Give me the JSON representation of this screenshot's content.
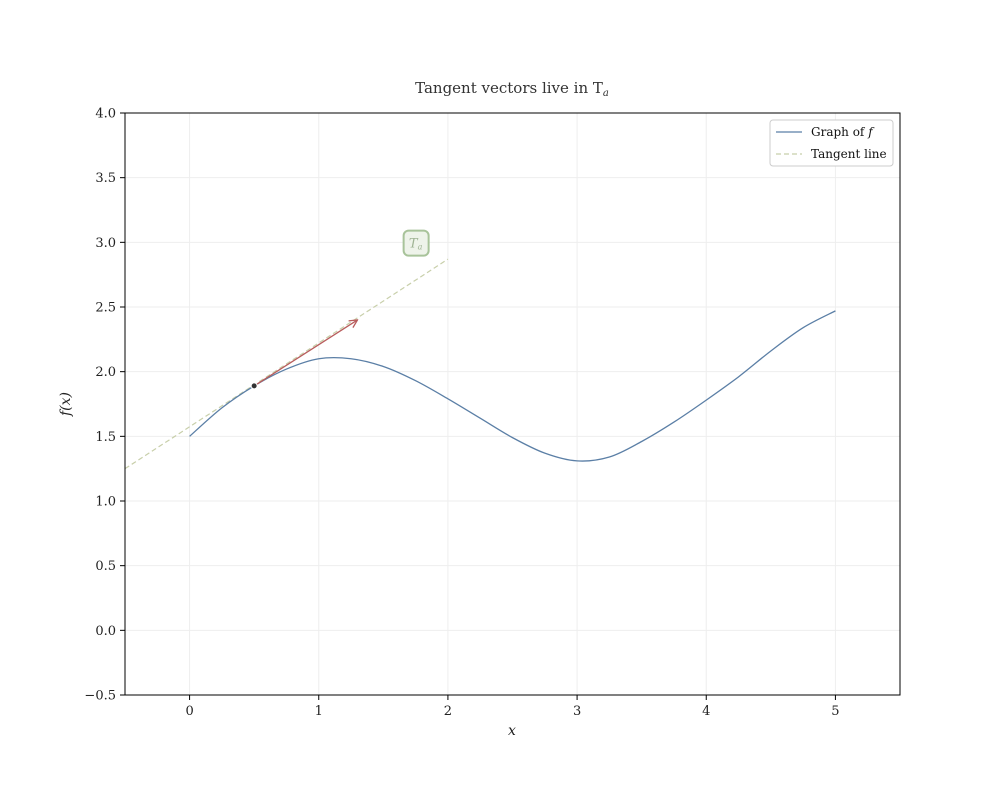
{
  "chart_data": {
    "type": "line",
    "title": "Tangent vectors live in T",
    "title_subscript": "a",
    "xlabel": "x",
    "ylabel": "f(x)",
    "xlim": [
      -0.5,
      5.5
    ],
    "ylim": [
      -0.5,
      4.0
    ],
    "xticks": [
      0,
      1,
      2,
      3,
      4,
      5
    ],
    "xtick_labels": [
      "0",
      "1",
      "2",
      "3",
      "4",
      "5"
    ],
    "yticks": [
      -0.5,
      0.0,
      0.5,
      1.0,
      1.5,
      2.0,
      2.5,
      3.0,
      3.5,
      4.0
    ],
    "ytick_labels": [
      "−0.5",
      "0.0",
      "0.5",
      "1.0",
      "1.5",
      "2.0",
      "2.5",
      "3.0",
      "3.5",
      "4.0"
    ],
    "grid": true,
    "legend_position": "top-right",
    "series": [
      {
        "name": "Graph of f",
        "style": "solid",
        "color": "#5b7fa6",
        "x": [
          0.0,
          0.25,
          0.5,
          0.75,
          1.0,
          1.25,
          1.5,
          1.75,
          2.0,
          2.25,
          2.5,
          2.75,
          3.0,
          3.25,
          3.5,
          3.75,
          4.0,
          4.25,
          4.5,
          4.75,
          5.0
        ],
        "y": [
          1.5,
          1.72,
          1.89,
          2.02,
          2.1,
          2.1,
          2.04,
          1.93,
          1.79,
          1.64,
          1.49,
          1.37,
          1.31,
          1.34,
          1.46,
          1.61,
          1.78,
          1.96,
          2.16,
          2.34,
          2.47
        ]
      },
      {
        "name": "Tangent line",
        "style": "dashed",
        "color": "#c8cfaa",
        "x": [
          -0.5,
          2.0
        ],
        "y": [
          1.25,
          2.87
        ]
      }
    ],
    "legend": {
      "entries": [
        {
          "label": "Graph of ",
          "symbol": "f",
          "style": "solid",
          "color": "#5b7fa6"
        },
        {
          "label": "Tangent line",
          "symbol": "",
          "style": "dashed",
          "color": "#c8cfaa"
        }
      ]
    },
    "point": {
      "x": 0.5,
      "y": 1.89,
      "color": "#333333"
    },
    "vector": {
      "from": [
        0.5,
        1.89
      ],
      "to": [
        1.3,
        2.4
      ],
      "color": "#b85c5c"
    },
    "annotation": {
      "text": "T",
      "subscript": "a",
      "x": 1.75,
      "y": 2.99,
      "border_color": "#a8c39a",
      "fill_color": "#eef3ea"
    }
  }
}
